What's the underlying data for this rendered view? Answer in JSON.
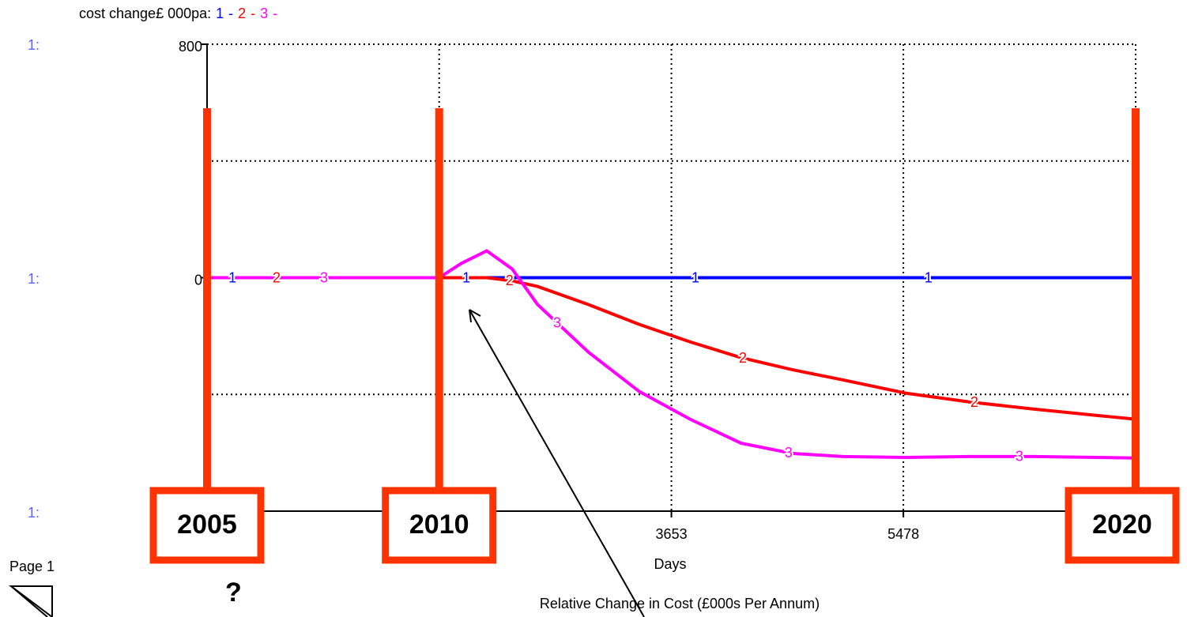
{
  "chart_data": {
    "type": "line",
    "title": "Relative Change in Cost (£000s Per Annum)",
    "legend_title": "cost change£ 000pa:",
    "legend_separator": "-",
    "scale_label": "1:",
    "page_label": "Page 1",
    "help_label": "?",
    "x_label": "Days",
    "x": [
      0,
      500,
      1000,
      1500,
      1826,
      2000,
      2200,
      2400,
      2600,
      3000,
      3400,
      3800,
      4200,
      4600,
      5000,
      5500,
      6000,
      6500,
      7000,
      7305
    ],
    "xlim": [
      0,
      7305
    ],
    "xticks": [
      3653,
      5478
    ],
    "xgrid": [
      1826,
      3653,
      5478
    ],
    "ylim": [
      -800,
      800
    ],
    "yticks": [
      0,
      800
    ],
    "ygrid": [
      -400,
      400
    ],
    "grid": true,
    "series": [
      {
        "name": "1",
        "color": "#0000ff",
        "values": [
          0,
          0,
          0,
          0,
          0,
          0,
          0,
          0,
          0,
          0,
          0,
          0,
          0,
          0,
          0,
          0,
          0,
          0,
          0,
          0
        ]
      },
      {
        "name": "2",
        "color": "#ff0000",
        "values": [
          0,
          0,
          0,
          0,
          0,
          0,
          0,
          -11,
          -30,
          -92,
          -160,
          -220,
          -274,
          -315,
          -350,
          -396,
          -426,
          -450,
          -472,
          -485
        ]
      },
      {
        "name": "3",
        "color": "#ff00ff",
        "values": [
          0,
          0,
          0,
          0,
          0,
          49,
          92,
          30,
          -92,
          -255,
          -390,
          -485,
          -567,
          -602,
          -613,
          -616,
          -613,
          -613,
          -616,
          -618
        ]
      }
    ],
    "annotations": [
      {
        "text": "2005",
        "x": 0
      },
      {
        "text": "2010",
        "x": 1826
      },
      {
        "text": "2020",
        "x": 7305
      }
    ]
  }
}
